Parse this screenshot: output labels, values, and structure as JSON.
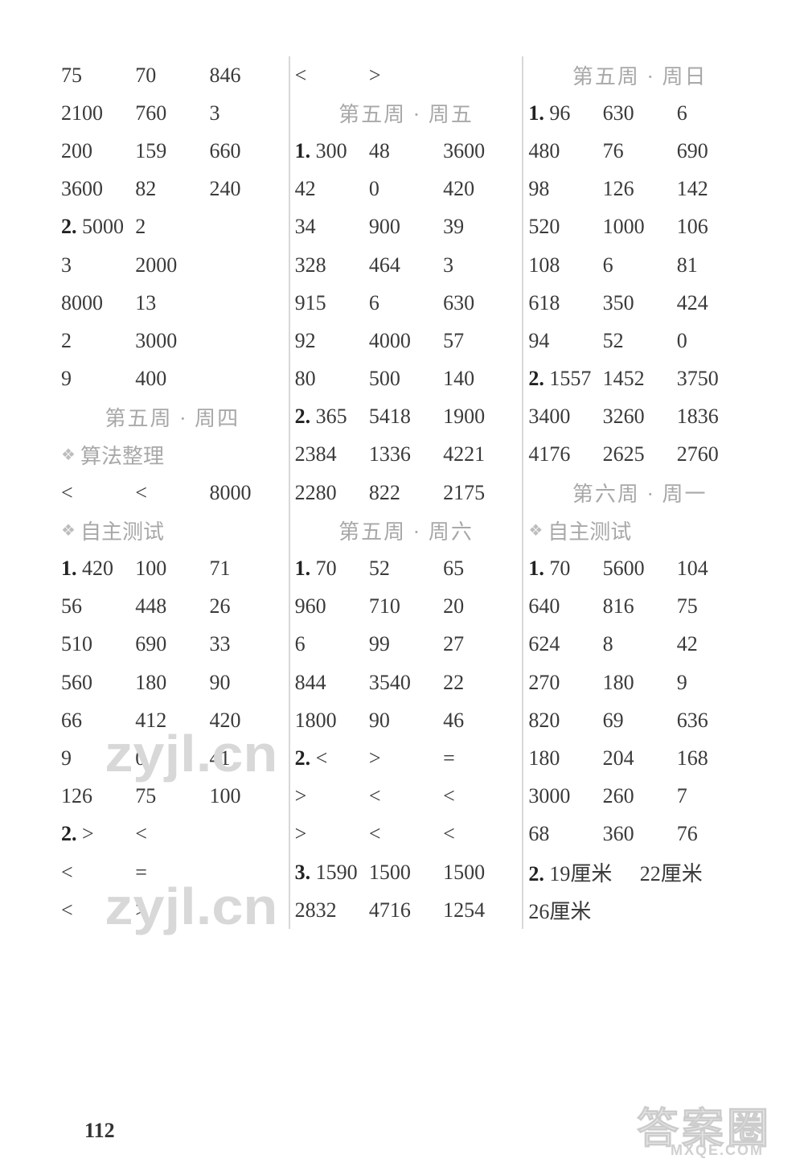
{
  "page_number": "112",
  "watermarks": {
    "wm1": "zyjl.cn",
    "wm2": "zyjl.cn",
    "wm3": "答案圈",
    "wm4": "MXQE.COM"
  },
  "colors": {
    "text": "#3a3a3a",
    "heading": "#a8a8a8",
    "separator": "#d8d8d8",
    "background": "#ffffff"
  },
  "fontsize": {
    "body": 26,
    "heading": 26
  },
  "col1": {
    "rows": [
      {
        "type": "data",
        "cells": [
          "75",
          "70",
          "846"
        ]
      },
      {
        "type": "data",
        "cells": [
          "2100",
          "760",
          "3"
        ]
      },
      {
        "type": "data",
        "cells": [
          "200",
          "159",
          "660"
        ]
      },
      {
        "type": "data",
        "cells": [
          "3600",
          "82",
          "240"
        ]
      },
      {
        "type": "data",
        "num": "2.",
        "cells": [
          "5000",
          "2",
          ""
        ]
      },
      {
        "type": "data",
        "cells": [
          "3",
          "2000",
          ""
        ]
      },
      {
        "type": "data",
        "cells": [
          "8000",
          "13",
          ""
        ]
      },
      {
        "type": "data",
        "cells": [
          "2",
          "3000",
          ""
        ]
      },
      {
        "type": "data",
        "cells": [
          "9",
          "400",
          ""
        ]
      },
      {
        "type": "heading",
        "text": "第五周 · 周四"
      },
      {
        "type": "subhead",
        "text": "算法整理"
      },
      {
        "type": "data",
        "cells": [
          "<",
          "<",
          "8000"
        ]
      },
      {
        "type": "subhead",
        "text": "自主测试"
      },
      {
        "type": "data",
        "num": "1.",
        "cells": [
          "420",
          "100",
          "71"
        ]
      },
      {
        "type": "data",
        "cells": [
          "56",
          "448",
          "26"
        ]
      },
      {
        "type": "data",
        "cells": [
          "510",
          "690",
          "33"
        ]
      },
      {
        "type": "data",
        "cells": [
          "560",
          "180",
          "90"
        ]
      },
      {
        "type": "data",
        "cells": [
          "66",
          "412",
          "420"
        ]
      },
      {
        "type": "data",
        "cells": [
          "9",
          "0",
          "41"
        ]
      },
      {
        "type": "data",
        "cells": [
          "126",
          "75",
          "100"
        ]
      },
      {
        "type": "data",
        "num": "2.",
        "cells": [
          ">",
          "<",
          ""
        ]
      },
      {
        "type": "data",
        "cells": [
          "<",
          "=",
          ""
        ]
      },
      {
        "type": "data",
        "cells": [
          "<",
          ">",
          ""
        ]
      }
    ]
  },
  "col2": {
    "rows": [
      {
        "type": "data",
        "cells": [
          "<",
          ">",
          ""
        ]
      },
      {
        "type": "heading",
        "text": "第五周 · 周五"
      },
      {
        "type": "data",
        "num": "1.",
        "cells": [
          "300",
          "48",
          "3600"
        ]
      },
      {
        "type": "data",
        "cells": [
          "42",
          "0",
          "420"
        ]
      },
      {
        "type": "data",
        "cells": [
          "34",
          "900",
          "39"
        ]
      },
      {
        "type": "data",
        "cells": [
          "328",
          "464",
          "3"
        ]
      },
      {
        "type": "data",
        "cells": [
          "915",
          "6",
          "630"
        ]
      },
      {
        "type": "data",
        "cells": [
          "92",
          "4000",
          "57"
        ]
      },
      {
        "type": "data",
        "cells": [
          "80",
          "500",
          "140"
        ]
      },
      {
        "type": "data",
        "num": "2.",
        "cells": [
          "365",
          "5418",
          "1900"
        ]
      },
      {
        "type": "data",
        "cells": [
          "2384",
          "1336",
          "4221"
        ]
      },
      {
        "type": "data",
        "cells": [
          "2280",
          "822",
          "2175"
        ]
      },
      {
        "type": "heading",
        "text": "第五周 · 周六"
      },
      {
        "type": "data",
        "num": "1.",
        "cells": [
          "70",
          "52",
          "65"
        ]
      },
      {
        "type": "data",
        "cells": [
          "960",
          "710",
          "20"
        ]
      },
      {
        "type": "data",
        "cells": [
          "6",
          "99",
          "27"
        ]
      },
      {
        "type": "data",
        "cells": [
          "844",
          "3540",
          "22"
        ]
      },
      {
        "type": "data",
        "cells": [
          "1800",
          "90",
          "46"
        ]
      },
      {
        "type": "data",
        "num": "2.",
        "cells": [
          "<",
          ">",
          "="
        ]
      },
      {
        "type": "data",
        "cells": [
          ">",
          "<",
          "<"
        ]
      },
      {
        "type": "data",
        "cells": [
          ">",
          "<",
          "<"
        ]
      },
      {
        "type": "data",
        "num": "3.",
        "cells": [
          "1590",
          "1500",
          "1500"
        ]
      },
      {
        "type": "data",
        "cells": [
          "2832",
          "4716",
          "1254"
        ]
      }
    ]
  },
  "col3": {
    "rows": [
      {
        "type": "heading",
        "text": "第五周 · 周日"
      },
      {
        "type": "data",
        "num": "1.",
        "cells": [
          "96",
          "630",
          "6"
        ]
      },
      {
        "type": "data",
        "cells": [
          "480",
          "76",
          "690"
        ]
      },
      {
        "type": "data",
        "cells": [
          "98",
          "126",
          "142"
        ]
      },
      {
        "type": "data",
        "cells": [
          "520",
          "1000",
          "106"
        ]
      },
      {
        "type": "data",
        "cells": [
          "108",
          "6",
          "81"
        ]
      },
      {
        "type": "data",
        "cells": [
          "618",
          "350",
          "424"
        ]
      },
      {
        "type": "data",
        "cells": [
          "94",
          "52",
          "0"
        ]
      },
      {
        "type": "data",
        "num": "2.",
        "cells": [
          "1557",
          "1452",
          "3750"
        ]
      },
      {
        "type": "data",
        "cells": [
          "3400",
          "3260",
          "1836"
        ]
      },
      {
        "type": "data",
        "cells": [
          "4176",
          "2625",
          "2760"
        ]
      },
      {
        "type": "heading",
        "text": "第六周 · 周一"
      },
      {
        "type": "subhead",
        "text": "自主测试"
      },
      {
        "type": "data",
        "num": "1.",
        "cells": [
          "70",
          "5600",
          "104"
        ]
      },
      {
        "type": "data",
        "cells": [
          "640",
          "816",
          "75"
        ]
      },
      {
        "type": "data",
        "cells": [
          "624",
          "8",
          "42"
        ]
      },
      {
        "type": "data",
        "cells": [
          "270",
          "180",
          "9"
        ]
      },
      {
        "type": "data",
        "cells": [
          "820",
          "69",
          "636"
        ]
      },
      {
        "type": "data",
        "cells": [
          "180",
          "204",
          "168"
        ]
      },
      {
        "type": "data",
        "cells": [
          "3000",
          "260",
          "7"
        ]
      },
      {
        "type": "data",
        "cells": [
          "68",
          "360",
          "76"
        ]
      },
      {
        "type": "free",
        "num": "2.",
        "cells": [
          "19厘米",
          "22厘米"
        ]
      },
      {
        "type": "free",
        "cells": [
          "26厘米",
          ""
        ]
      }
    ]
  }
}
